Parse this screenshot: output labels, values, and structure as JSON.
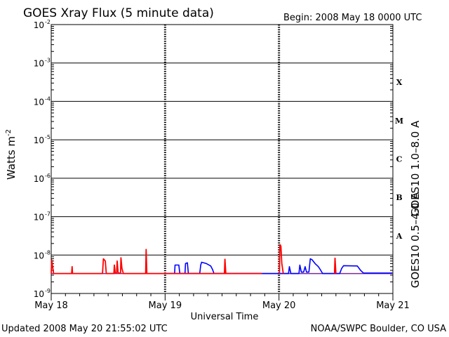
{
  "title": "GOES Xray Flux (5 minute data)",
  "begin_label": "Begin:  2008 May 18 0000 UTC",
  "footer_left": "Updated 2008 May 20 21:55:02 UTC",
  "footer_right": "NOAA/SWPC Boulder, CO USA",
  "ylabel_base": "Watts m",
  "ylabel_exp": "-2",
  "colors": {
    "long": "#ff0000",
    "short": "#0000ff",
    "axis": "#000000"
  },
  "chart_data": {
    "type": "line",
    "yscale": "log",
    "ylim": [
      1e-09,
      0.01
    ],
    "xlim": [
      0,
      72
    ],
    "xlabel": "Universal Time",
    "x_ticks": [
      {
        "label": "May 18",
        "hour": 0
      },
      {
        "label": "May 19",
        "hour": 24
      },
      {
        "label": "May 20",
        "hour": 48
      },
      {
        "label": "May 21",
        "hour": 72
      }
    ],
    "y_ticks": [
      {
        "base": "10",
        "exp": "-9",
        "value": 1e-09
      },
      {
        "base": "10",
        "exp": "-8",
        "value": 1e-08
      },
      {
        "base": "10",
        "exp": "-7",
        "value": 1e-07
      },
      {
        "base": "10",
        "exp": "-6",
        "value": 1e-06
      },
      {
        "base": "10",
        "exp": "-5",
        "value": 1e-05
      },
      {
        "base": "10",
        "exp": "-4",
        "value": 0.0001
      },
      {
        "base": "10",
        "exp": "-3",
        "value": 0.001
      },
      {
        "base": "10",
        "exp": "-2",
        "value": 0.01
      }
    ],
    "flare_classes": [
      {
        "label": "A",
        "low": 1e-08,
        "high": 1e-07
      },
      {
        "label": "B",
        "low": 1e-07,
        "high": 1e-06
      },
      {
        "label": "C",
        "low": 1e-06,
        "high": 1e-05
      },
      {
        "label": "M",
        "low": 1e-05,
        "high": 0.0001
      },
      {
        "label": "X",
        "low": 0.0001,
        "high": 0.001
      }
    ],
    "grid": "horizontal at decades",
    "series": [
      {
        "name": "GOES10 1.0–8.0 A",
        "key": "long",
        "points": [
          [
            0.0,
            3.3e-09
          ],
          [
            0.1,
            7.5e-09
          ],
          [
            0.3,
            5e-09
          ],
          [
            0.5,
            3.3e-09
          ],
          [
            4.3,
            3.3e-09
          ],
          [
            4.4,
            5e-09
          ],
          [
            4.5,
            3.3e-09
          ],
          [
            10.8,
            3.3e-09
          ],
          [
            11.0,
            8e-09
          ],
          [
            11.4,
            7e-09
          ],
          [
            11.6,
            3.3e-09
          ],
          [
            13.2,
            3.3e-09
          ],
          [
            13.3,
            5.5e-09
          ],
          [
            13.5,
            3.4e-09
          ],
          [
            13.8,
            3.4e-09
          ],
          [
            13.9,
            7e-09
          ],
          [
            14.1,
            3.4e-09
          ],
          [
            14.6,
            3.4e-09
          ],
          [
            14.7,
            8.5e-09
          ],
          [
            14.9,
            4.5e-09
          ],
          [
            15.2,
            3.3e-09
          ],
          [
            19.9,
            3.3e-09
          ],
          [
            20.0,
            1.4e-08
          ],
          [
            20.15,
            3.3e-09
          ],
          [
            44.4,
            3.3e-09
          ]
        ]
      },
      {
        "name": "GOES10 0.5–4.0 A",
        "key": "short",
        "points": [
          [
            24.0,
            3.3e-09
          ],
          [
            26.0,
            3.3e-09
          ],
          [
            26.1,
            5.5e-09
          ],
          [
            26.9,
            5.5e-09
          ],
          [
            27.1,
            3.3e-09
          ],
          [
            28.2,
            3.3e-09
          ],
          [
            28.3,
            6e-09
          ],
          [
            28.7,
            6.3e-09
          ],
          [
            28.9,
            3.3e-09
          ],
          [
            31.3,
            3.3e-09
          ],
          [
            31.5,
            5.5e-09
          ],
          [
            31.7,
            6.5e-09
          ],
          [
            32.7,
            6e-09
          ],
          [
            33.6,
            5.2e-09
          ],
          [
            34.0,
            4.2e-09
          ],
          [
            34.3,
            3.3e-09
          ],
          [
            50.0,
            3.3e-09
          ],
          [
            50.2,
            5e-09
          ],
          [
            50.5,
            3.3e-09
          ],
          [
            52.2,
            3.3e-09
          ],
          [
            52.4,
            5.5e-09
          ],
          [
            52.7,
            3.6e-09
          ],
          [
            53.2,
            3.6e-09
          ],
          [
            53.5,
            5e-09
          ],
          [
            53.8,
            3.6e-09
          ],
          [
            54.3,
            3.6e-09
          ],
          [
            54.6,
            8e-09
          ],
          [
            55.0,
            7.5e-09
          ],
          [
            55.6,
            6e-09
          ],
          [
            56.3,
            5e-09
          ],
          [
            56.8,
            4e-09
          ],
          [
            57.2,
            3.3e-09
          ],
          [
            60.8,
            3.3e-09
          ],
          [
            61.2,
            4.5e-09
          ],
          [
            61.6,
            5.3e-09
          ],
          [
            64.5,
            5.2e-09
          ],
          [
            65.2,
            4e-09
          ],
          [
            65.8,
            3.4e-09
          ],
          [
            71.9,
            3.4e-09
          ]
        ]
      }
    ],
    "gaps": [
      [
        0,
        1
      ],
      [
        34.5,
        35
      ],
      [
        48,
        49
      ],
      [
        59.5,
        60
      ]
    ]
  },
  "long_spikes": [
    [
      36.5,
      3.3e-09
    ],
    [
      36.6,
      8e-09
    ],
    [
      36.8,
      3.3e-09
    ],
    [
      48.1,
      3.3e-09
    ],
    [
      48.2,
      1.9e-08
    ],
    [
      48.4,
      1.7e-08
    ],
    [
      48.6,
      6e-09
    ],
    [
      48.9,
      3.3e-09
    ],
    [
      59.7,
      3.3e-09
    ],
    [
      59.8,
      8.5e-09
    ],
    [
      60.0,
      3.3e-09
    ]
  ]
}
